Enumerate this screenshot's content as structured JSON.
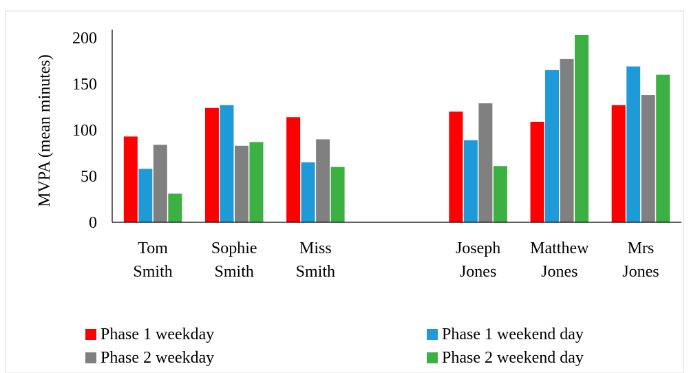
{
  "chart_data": {
    "type": "bar",
    "ylabel": "MVPA (mean minutes)",
    "ylim": [
      0,
      200
    ],
    "yticks": [
      0,
      50,
      100,
      150,
      200
    ],
    "grid": false,
    "legend_position": "bottom",
    "groups": [
      {
        "label": [
          "Tom",
          "Smith"
        ]
      },
      {
        "label": [
          "Sophie",
          "Smith"
        ]
      },
      {
        "label": [
          "Miss",
          "Smith"
        ]
      },
      {
        "label": [
          "",
          ""
        ],
        "gap": true
      },
      {
        "label": [
          "Joseph",
          "Jones"
        ]
      },
      {
        "label": [
          "Matthew",
          "Jones"
        ]
      },
      {
        "label": [
          "Mrs",
          "Jones"
        ]
      }
    ],
    "series": [
      {
        "name": "Phase 1 weekday",
        "color": "#ff0000",
        "values": [
          93,
          124,
          114,
          null,
          120,
          109,
          127
        ]
      },
      {
        "name": "Phase 1 weekend day",
        "color": "#1e9ad6",
        "values": [
          58,
          127,
          65,
          null,
          89,
          165,
          169
        ]
      },
      {
        "name": "Phase 2 weekday",
        "color": "#808080",
        "values": [
          84,
          83,
          90,
          null,
          129,
          177,
          138
        ]
      },
      {
        "name": "Phase 2 weekend day",
        "color": "#3cb043",
        "values": [
          31,
          87,
          60,
          null,
          61,
          203,
          160
        ]
      }
    ]
  }
}
